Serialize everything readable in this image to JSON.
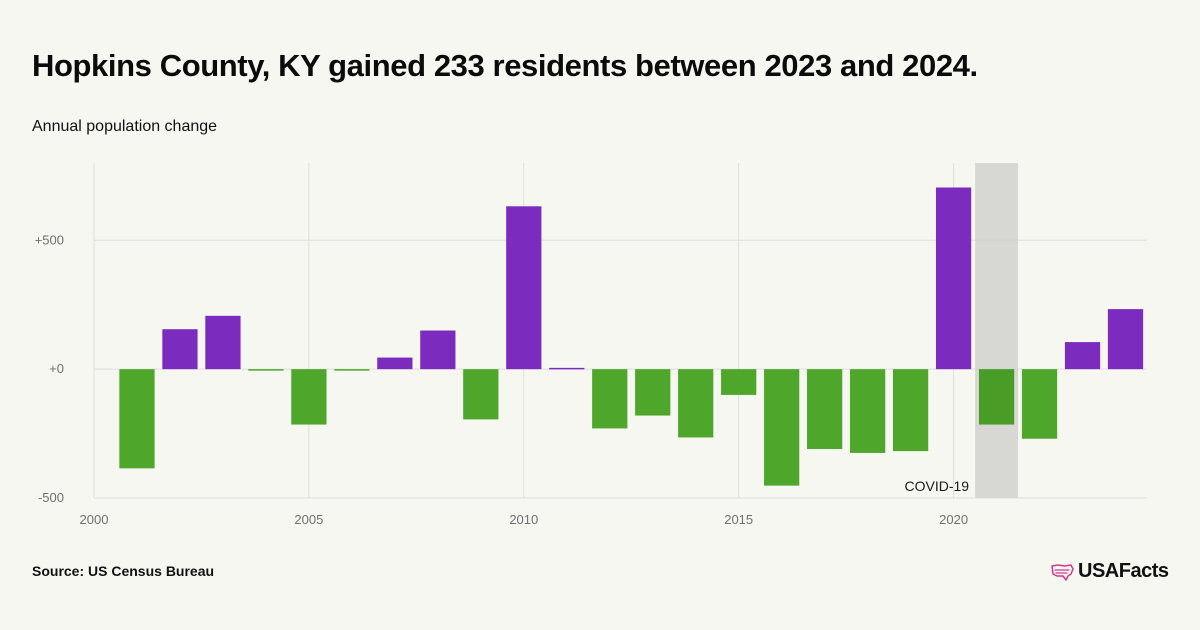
{
  "header": {
    "title": "Hopkins County, KY gained 233 residents between 2023 and 2024.",
    "subtitle": "Annual population change"
  },
  "footer": {
    "source": "Source: US Census Bureau",
    "brand": "USAFacts",
    "brand_icon": "usa-map-icon"
  },
  "colors": {
    "positive": "#7b2cbf",
    "negative": "#4ea72a",
    "background": "#f7f7f2",
    "grid": "#dddddd",
    "covid_band": "#e5e5e1",
    "brand_icon": "#d3388f"
  },
  "chart_data": {
    "type": "bar",
    "title": "Hopkins County, KY gained 233 residents between 2023 and 2024.",
    "subtitle": "Annual population change",
    "xlabel": "",
    "ylabel": "",
    "x": [
      2001,
      2002,
      2003,
      2004,
      2005,
      2006,
      2007,
      2008,
      2009,
      2010,
      2011,
      2012,
      2013,
      2014,
      2015,
      2016,
      2017,
      2018,
      2019,
      2020,
      2021,
      2022,
      2023,
      2024
    ],
    "values": [
      -385,
      155,
      207,
      -5,
      -215,
      -5,
      45,
      150,
      -195,
      632,
      5,
      -230,
      -180,
      -265,
      -100,
      -452,
      -310,
      -325,
      -318,
      705,
      -215,
      -270,
      105,
      233
    ],
    "xlim": [
      2000,
      2024.5
    ],
    "ylim": [
      -500,
      800
    ],
    "x_ticks": [
      {
        "value": 2000,
        "label": "2000"
      },
      {
        "value": 2005,
        "label": "2005"
      },
      {
        "value": 2010,
        "label": "2010"
      },
      {
        "value": 2015,
        "label": "2015"
      },
      {
        "value": 2020,
        "label": "2020"
      }
    ],
    "y_ticks": [
      {
        "value": 500,
        "label": "+500"
      },
      {
        "value": 0,
        "label": "+0"
      },
      {
        "value": -500,
        "label": "-500"
      }
    ],
    "grid": true,
    "annotation": {
      "label": "COVID-19",
      "x_start": 2020.5,
      "x_end": 2021.5
    }
  }
}
